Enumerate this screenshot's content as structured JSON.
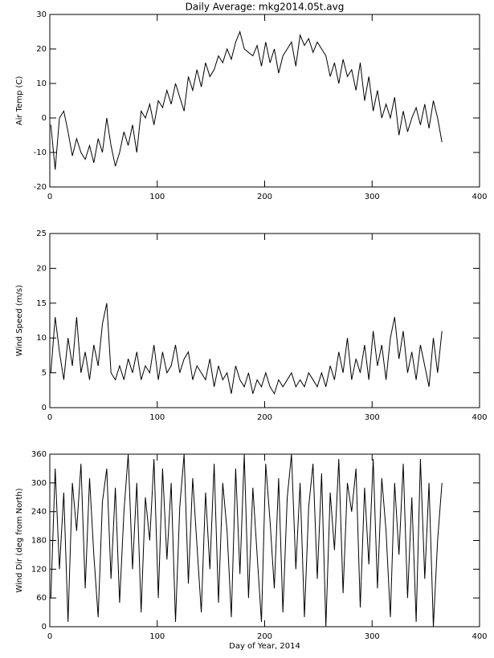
{
  "chart_data": [
    {
      "type": "line",
      "title": "Daily Average: mkg2014.05t.avg",
      "ylabel": "Air Temp (C)",
      "xlim": [
        0,
        400
      ],
      "xticks": [
        0,
        100,
        200,
        300,
        400
      ],
      "ylim": [
        -20,
        30
      ],
      "yticks": [
        -20,
        -10,
        0,
        10,
        20,
        30
      ],
      "x": [
        1,
        5,
        9,
        13,
        17,
        21,
        25,
        29,
        33,
        37,
        41,
        45,
        49,
        53,
        57,
        61,
        65,
        69,
        73,
        77,
        81,
        85,
        89,
        93,
        97,
        101,
        105,
        109,
        113,
        117,
        121,
        125,
        129,
        133,
        137,
        141,
        145,
        149,
        153,
        157,
        161,
        165,
        169,
        173,
        177,
        181,
        185,
        189,
        193,
        197,
        201,
        205,
        209,
        213,
        217,
        221,
        225,
        229,
        233,
        237,
        241,
        245,
        249,
        253,
        257,
        261,
        265,
        269,
        273,
        277,
        281,
        285,
        289,
        293,
        297,
        301,
        305,
        309,
        313,
        317,
        321,
        325,
        329,
        333,
        337,
        341,
        345,
        349,
        353,
        357,
        361,
        365
      ],
      "color": "#000000",
      "values": [
        -2,
        -15,
        0,
        2,
        -4,
        -11,
        -6,
        -10,
        -12,
        -8,
        -13,
        -6,
        -10,
        0,
        -8,
        -14,
        -10,
        -4,
        -8,
        -2,
        -10,
        2,
        0,
        4,
        -2,
        5,
        3,
        8,
        4,
        10,
        6,
        2,
        12,
        8,
        14,
        9,
        16,
        12,
        14,
        18,
        16,
        20,
        17,
        22,
        25,
        20,
        19,
        18,
        21,
        15,
        22,
        16,
        20,
        13,
        18,
        20,
        22,
        15,
        24,
        21,
        23,
        19,
        22,
        20,
        18,
        12,
        16,
        10,
        17,
        12,
        14,
        8,
        16,
        5,
        12,
        2,
        8,
        0,
        4,
        0,
        6,
        -5,
        2,
        -4,
        0,
        3,
        -2,
        4,
        -3,
        5,
        0,
        -7
      ]
    },
    {
      "type": "line",
      "ylabel": "Wind Speed (m/s)",
      "xlim": [
        0,
        400
      ],
      "xticks": [
        0,
        100,
        200,
        300,
        400
      ],
      "ylim": [
        0,
        25
      ],
      "yticks": [
        0,
        5,
        10,
        15,
        20,
        25
      ],
      "x": [
        1,
        5,
        9,
        13,
        17,
        21,
        25,
        29,
        33,
        37,
        41,
        45,
        49,
        53,
        57,
        61,
        65,
        69,
        73,
        77,
        81,
        85,
        89,
        93,
        97,
        101,
        105,
        109,
        113,
        117,
        121,
        125,
        129,
        133,
        137,
        141,
        145,
        149,
        153,
        157,
        161,
        165,
        169,
        173,
        177,
        181,
        185,
        189,
        193,
        197,
        201,
        205,
        209,
        213,
        217,
        221,
        225,
        229,
        233,
        237,
        241,
        245,
        249,
        253,
        257,
        261,
        265,
        269,
        273,
        277,
        281,
        285,
        289,
        293,
        297,
        301,
        305,
        309,
        313,
        317,
        321,
        325,
        329,
        333,
        337,
        341,
        345,
        349,
        353,
        357,
        361,
        365
      ],
      "color": "#000000",
      "values": [
        5,
        13,
        8,
        4,
        10,
        6,
        13,
        5,
        8,
        4,
        9,
        6,
        12,
        15,
        5,
        4,
        6,
        4,
        7,
        5,
        8,
        4,
        6,
        5,
        9,
        4,
        8,
        5,
        6,
        9,
        5,
        7,
        8,
        4,
        6,
        5,
        4,
        7,
        3,
        6,
        4,
        5,
        2,
        6,
        4,
        3,
        5,
        2,
        4,
        3,
        5,
        3,
        2,
        4,
        3,
        4,
        5,
        3,
        4,
        3,
        5,
        4,
        3,
        5,
        3,
        6,
        4,
        8,
        5,
        10,
        4,
        7,
        5,
        9,
        4,
        11,
        6,
        9,
        4,
        10,
        13,
        7,
        11,
        5,
        8,
        4,
        9,
        6,
        3,
        10,
        5,
        11
      ]
    },
    {
      "type": "line",
      "ylabel": "Wind Dir (deg from North)",
      "xlabel": "Day of Year, 2014",
      "xlim": [
        0,
        400
      ],
      "xticks": [
        0,
        100,
        200,
        300,
        400
      ],
      "ylim": [
        0,
        360
      ],
      "yticks": [
        0,
        60,
        120,
        180,
        240,
        300,
        360
      ],
      "x": [
        1,
        5,
        9,
        13,
        17,
        21,
        25,
        29,
        33,
        37,
        41,
        45,
        49,
        53,
        57,
        61,
        65,
        69,
        73,
        77,
        81,
        85,
        89,
        93,
        97,
        101,
        105,
        109,
        113,
        117,
        121,
        125,
        129,
        133,
        137,
        141,
        145,
        149,
        153,
        157,
        161,
        165,
        169,
        173,
        177,
        181,
        185,
        189,
        193,
        197,
        201,
        205,
        209,
        213,
        217,
        221,
        225,
        229,
        233,
        237,
        241,
        245,
        249,
        253,
        257,
        261,
        265,
        269,
        273,
        277,
        281,
        285,
        289,
        293,
        297,
        301,
        305,
        309,
        313,
        317,
        321,
        325,
        329,
        333,
        337,
        341,
        345,
        349,
        353,
        357,
        361,
        365
      ],
      "color": "#000000",
      "values": [
        60,
        330,
        120,
        280,
        10,
        300,
        200,
        340,
        80,
        310,
        150,
        20,
        260,
        330,
        100,
        290,
        50,
        240,
        360,
        120,
        300,
        30,
        270,
        180,
        350,
        60,
        330,
        140,
        300,
        10,
        250,
        360,
        90,
        310,
        170,
        30,
        280,
        120,
        340,
        50,
        300,
        200,
        20,
        330,
        110,
        360,
        60,
        290,
        150,
        10,
        340,
        220,
        80,
        310,
        30,
        270,
        360,
        120,
        300,
        20,
        250,
        340,
        100,
        320,
        0,
        280,
        160,
        350,
        70,
        300,
        240,
        330,
        40,
        290,
        130,
        350,
        80,
        310,
        200,
        20,
        300,
        150,
        340,
        60,
        270,
        10,
        350,
        100,
        300,
        0,
        180,
        300
      ]
    }
  ]
}
